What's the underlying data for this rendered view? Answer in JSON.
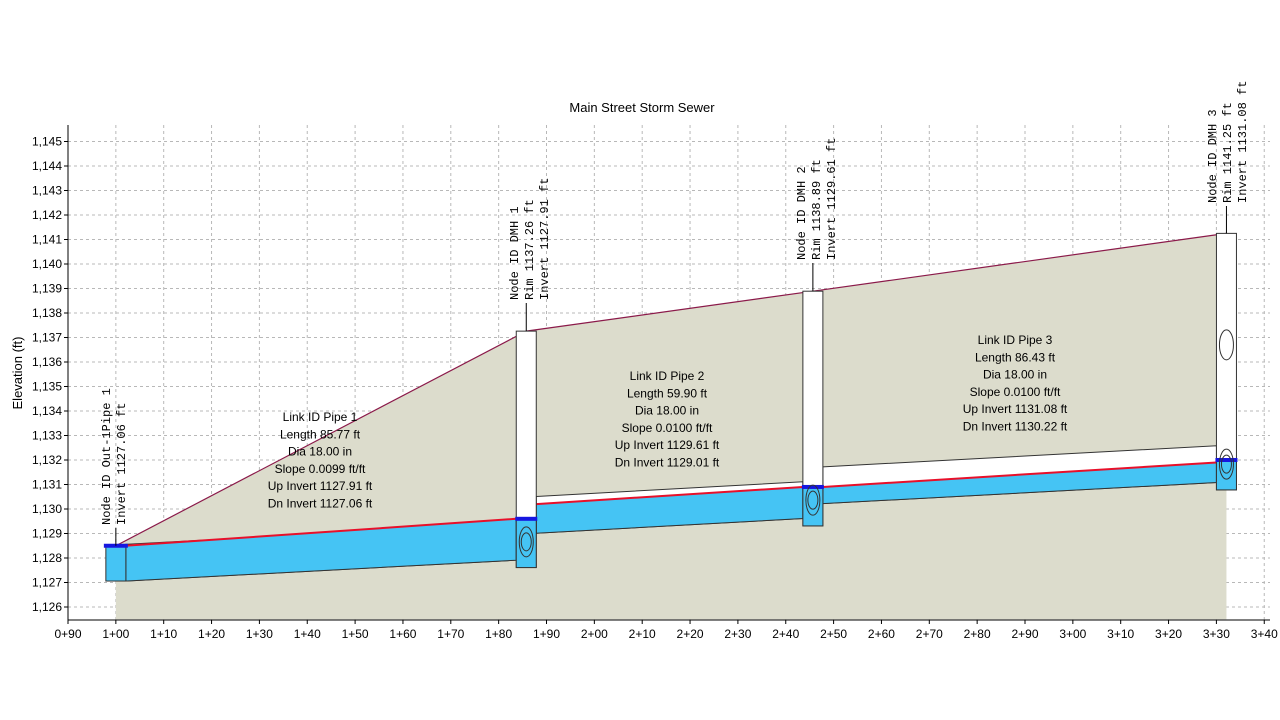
{
  "chart_data": {
    "type": "area",
    "title": "Main Street Storm Sewer",
    "ylabel": "Elevation (ft)",
    "xlabel": "",
    "ylim": [
      1125.5,
      1145.5
    ],
    "xlim": [
      90,
      340
    ],
    "grid": true,
    "y_ticks": [
      {
        "value": 1126,
        "label": "1,126"
      },
      {
        "value": 1127,
        "label": "1,127"
      },
      {
        "value": 1128,
        "label": "1,128"
      },
      {
        "value": 1129,
        "label": "1,129"
      },
      {
        "value": 1130,
        "label": "1,130"
      },
      {
        "value": 1131,
        "label": "1,131"
      },
      {
        "value": 1132,
        "label": "1,132"
      },
      {
        "value": 1133,
        "label": "1,133"
      },
      {
        "value": 1134,
        "label": "1,134"
      },
      {
        "value": 1135,
        "label": "1,135"
      },
      {
        "value": 1136,
        "label": "1,136"
      },
      {
        "value": 1137,
        "label": "1,137"
      },
      {
        "value": 1138,
        "label": "1,138"
      },
      {
        "value": 1139,
        "label": "1,139"
      },
      {
        "value": 1140,
        "label": "1,140"
      },
      {
        "value": 1141,
        "label": "1,141"
      },
      {
        "value": 1142,
        "label": "1,142"
      },
      {
        "value": 1143,
        "label": "1,143"
      },
      {
        "value": 1144,
        "label": "1,144"
      },
      {
        "value": 1145,
        "label": "1,145"
      }
    ],
    "x_ticks": [
      {
        "value": 90,
        "label": "0+90"
      },
      {
        "value": 100,
        "label": "1+00"
      },
      {
        "value": 110,
        "label": "1+10"
      },
      {
        "value": 120,
        "label": "1+20"
      },
      {
        "value": 130,
        "label": "1+30"
      },
      {
        "value": 140,
        "label": "1+40"
      },
      {
        "value": 150,
        "label": "1+50"
      },
      {
        "value": 160,
        "label": "1+60"
      },
      {
        "value": 170,
        "label": "1+70"
      },
      {
        "value": 180,
        "label": "1+80"
      },
      {
        "value": 190,
        "label": "1+90"
      },
      {
        "value": 200,
        "label": "2+00"
      },
      {
        "value": 210,
        "label": "2+10"
      },
      {
        "value": 220,
        "label": "2+20"
      },
      {
        "value": 230,
        "label": "2+30"
      },
      {
        "value": 240,
        "label": "2+40"
      },
      {
        "value": 250,
        "label": "2+50"
      },
      {
        "value": 260,
        "label": "2+60"
      },
      {
        "value": 270,
        "label": "2+70"
      },
      {
        "value": 280,
        "label": "2+80"
      },
      {
        "value": 290,
        "label": "2+90"
      },
      {
        "value": 300,
        "label": "3+00"
      },
      {
        "value": 310,
        "label": "3+10"
      },
      {
        "value": 320,
        "label": "3+20"
      },
      {
        "value": 330,
        "label": "3+30"
      },
      {
        "value": 340,
        "label": "3+40"
      }
    ],
    "nodes": [
      {
        "station": 100.0,
        "rim": 1128.5,
        "invert": 1127.06,
        "labels": [
          "Node ID Out-1Pipe 1",
          "Invert 1127.06 ft"
        ]
      },
      {
        "station": 185.77,
        "rim": 1137.26,
        "invert": 1127.91,
        "labels": [
          "Node ID DMH 1",
          "Rim 1137.26 ft",
          "Invert 1127.91 ft"
        ]
      },
      {
        "station": 245.67,
        "rim": 1138.89,
        "invert": 1129.61,
        "labels": [
          "Node ID DMH 2",
          "Rim 1138.89 ft",
          "Invert 1129.61 ft"
        ]
      },
      {
        "station": 332.1,
        "rim": 1141.25,
        "invert": 1131.08,
        "labels": [
          "Node ID DMH 3",
          "Rim 1141.25 ft",
          "Invert 1131.08 ft"
        ]
      }
    ],
    "links": [
      {
        "from": 0,
        "to": 1,
        "up_invert": 1127.91,
        "dn_invert": 1127.06,
        "hgl_up": 1129.6,
        "hgl_dn": 1128.5,
        "labels": [
          "Link ID Pipe 1",
          "Length 85.77 ft",
          "Dia 18.00 in",
          "Slope 0.0099 ft/ft",
          "Up Invert 1127.91 ft",
          "Dn Invert 1127.06 ft"
        ]
      },
      {
        "from": 1,
        "to": 2,
        "up_invert": 1129.61,
        "dn_invert": 1129.01,
        "hgl_up": 1130.9,
        "hgl_dn": 1130.2,
        "labels": [
          "Link ID Pipe 2",
          "Length 59.90 ft",
          "Dia 18.00 in",
          "Slope 0.0100 ft/ft",
          "Up Invert 1129.61 ft",
          "Dn Invert 1129.01 ft"
        ]
      },
      {
        "from": 2,
        "to": 3,
        "up_invert": 1131.08,
        "dn_invert": 1130.22,
        "hgl_up": 1131.9,
        "hgl_dn": 1130.9,
        "labels": [
          "Link ID Pipe 3",
          "Length 86.43 ft",
          "Dia 18.00 in",
          "Slope 0.0100 ft/ft",
          "Up Invert 1131.08 ft",
          "Dn Invert 1130.22 ft"
        ]
      }
    ],
    "colors": {
      "ground_fill": "#dcdccc",
      "ground_line": "#8b1a4a",
      "water": "#45c4f4",
      "hgl": "#e8102a",
      "node_water_mark": "#1616e0",
      "grid": "#b8b8b8",
      "axis": "#000000"
    }
  }
}
